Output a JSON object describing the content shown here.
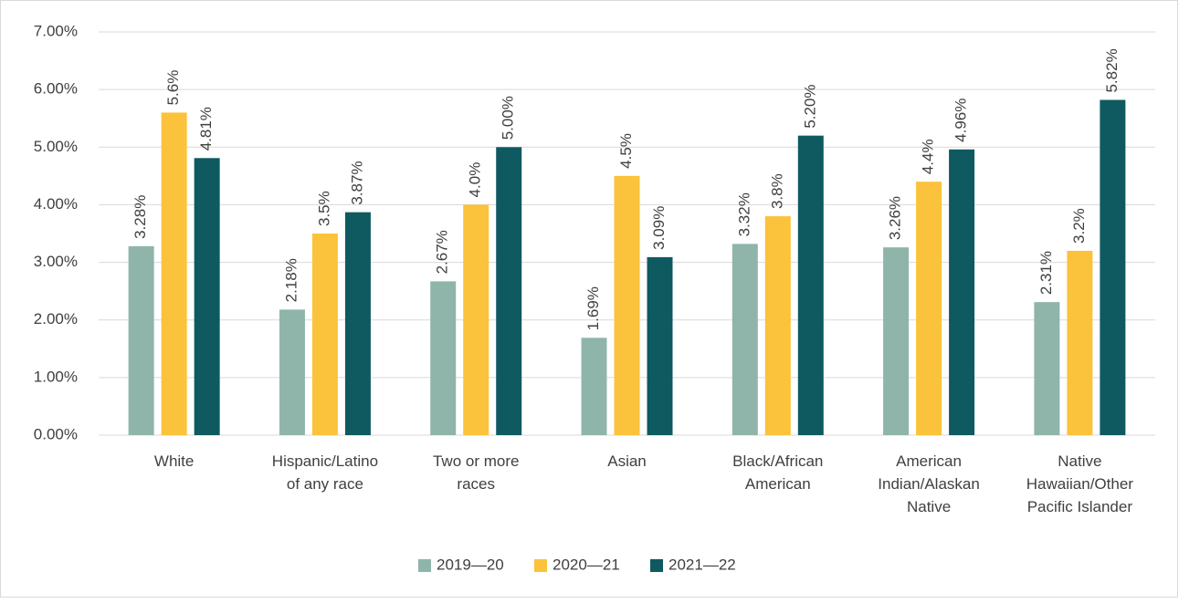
{
  "chart_data": {
    "type": "bar",
    "categories": [
      "White",
      "Hispanic/Latino\nof any race",
      "Two or more\nraces",
      "Asian",
      "Black/African\nAmerican",
      "American\nIndian/Alaskan\nNative",
      "Native\nHawaiian/Other\nPacific Islander"
    ],
    "series": [
      {
        "name": "2019—20",
        "color": "#8fb5aa",
        "values": [
          3.28,
          2.18,
          2.67,
          1.69,
          3.32,
          3.26,
          2.31
        ],
        "value_labels": [
          "3.28%",
          "2.18%",
          "2.67%",
          "1.69%",
          "3.32%",
          "3.26%",
          "2.31%"
        ]
      },
      {
        "name": "2020—21",
        "color": "#fbc23b",
        "values": [
          5.6,
          3.5,
          4.0,
          4.5,
          3.8,
          4.4,
          3.2
        ],
        "value_labels": [
          "5.6%",
          "3.5%",
          "4.0%",
          "4.5%",
          "3.8%",
          "4.4%",
          "3.2%"
        ]
      },
      {
        "name": "2021—22",
        "color": "#0e5a60",
        "values": [
          4.81,
          3.87,
          5.0,
          3.09,
          5.2,
          4.96,
          5.82
        ],
        "value_labels": [
          "4.81%",
          "3.87%",
          "5.00%",
          "3.09%",
          "5.20%",
          "4.96%",
          "5.82%"
        ]
      }
    ],
    "ylim": [
      0,
      7
    ],
    "yticks": [
      {
        "value": 0,
        "label": "0.00%"
      },
      {
        "value": 1,
        "label": "1.00%"
      },
      {
        "value": 2,
        "label": "2.00%"
      },
      {
        "value": 3,
        "label": "3.00%"
      },
      {
        "value": 4,
        "label": "4.00%"
      },
      {
        "value": 5,
        "label": "5.00%"
      },
      {
        "value": 6,
        "label": "6.00%"
      },
      {
        "value": 7,
        "label": "7.00%"
      }
    ],
    "grid": true,
    "legend": "bottom"
  }
}
